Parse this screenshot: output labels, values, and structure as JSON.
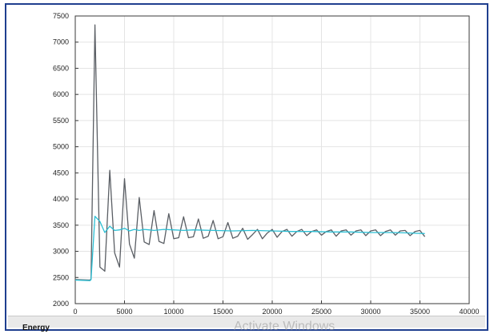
{
  "chart_data": {
    "type": "line",
    "title": "",
    "xlabel": "",
    "ylabel": "",
    "xlim": [
      0,
      40000
    ],
    "ylim": [
      2000,
      7500
    ],
    "xticks": [
      0,
      5000,
      10000,
      15000,
      20000,
      25000,
      30000,
      35000,
      40000
    ],
    "yticks": [
      2000,
      2500,
      3000,
      3500,
      4000,
      4500,
      5000,
      5500,
      6000,
      6500,
      7000,
      7500
    ],
    "grid": true,
    "legend": "none",
    "series": [
      {
        "color": "#5a5e64",
        "x": [
          0,
          1500,
          1600,
          2000,
          2500,
          3000,
          3500,
          4000,
          4500,
          5000,
          5500,
          6000,
          6500,
          7000,
          7500,
          8000,
          8500,
          9000,
          9500,
          10000,
          10500,
          11000,
          11500,
          12000,
          12500,
          13000,
          13500,
          14000,
          14500,
          15000,
          15500,
          16000,
          16500,
          17000,
          17500,
          18000,
          18500,
          19000,
          19500,
          20000,
          20500,
          21000,
          21500,
          22000,
          22500,
          23000,
          23500,
          24000,
          24500,
          25000,
          25500,
          26000,
          26500,
          27000,
          27500,
          28000,
          28500,
          29000,
          29500,
          30000,
          30500,
          31000,
          31500,
          32000,
          32500,
          33000,
          33500,
          34000,
          34500,
          35000,
          35500
        ],
        "y": [
          2460,
          2450,
          2470,
          7330,
          2700,
          2620,
          4550,
          2970,
          2700,
          4390,
          3140,
          2870,
          4030,
          3180,
          3130,
          3780,
          3190,
          3150,
          3720,
          3240,
          3260,
          3660,
          3260,
          3280,
          3620,
          3250,
          3290,
          3590,
          3240,
          3280,
          3550,
          3250,
          3290,
          3440,
          3230,
          3320,
          3420,
          3240,
          3350,
          3420,
          3270,
          3380,
          3420,
          3290,
          3380,
          3420,
          3300,
          3380,
          3410,
          3310,
          3380,
          3410,
          3290,
          3390,
          3410,
          3310,
          3390,
          3410,
          3300,
          3390,
          3410,
          3300,
          3380,
          3410,
          3310,
          3390,
          3400,
          3300,
          3380,
          3400,
          3280
        ]
      },
      {
        "color": "#2bbfd4",
        "x": [
          0,
          1500,
          1600,
          2000,
          2500,
          3000,
          3500,
          4000,
          4500,
          5000,
          5500,
          6000,
          6500,
          7000,
          7500,
          8000,
          9000,
          10000,
          11000,
          12000,
          14000,
          16000,
          18000,
          20000,
          22000,
          24000,
          26000,
          28000,
          30000,
          32000,
          34000,
          35500
        ],
        "y": [
          2450,
          2440,
          2460,
          3670,
          3570,
          3360,
          3480,
          3400,
          3410,
          3440,
          3390,
          3420,
          3400,
          3420,
          3410,
          3400,
          3420,
          3410,
          3400,
          3410,
          3400,
          3390,
          3400,
          3390,
          3380,
          3380,
          3370,
          3370,
          3360,
          3360,
          3350,
          3340
        ]
      }
    ]
  },
  "footer": {
    "label": "Energy",
    "watermark": "Activate Windows"
  }
}
